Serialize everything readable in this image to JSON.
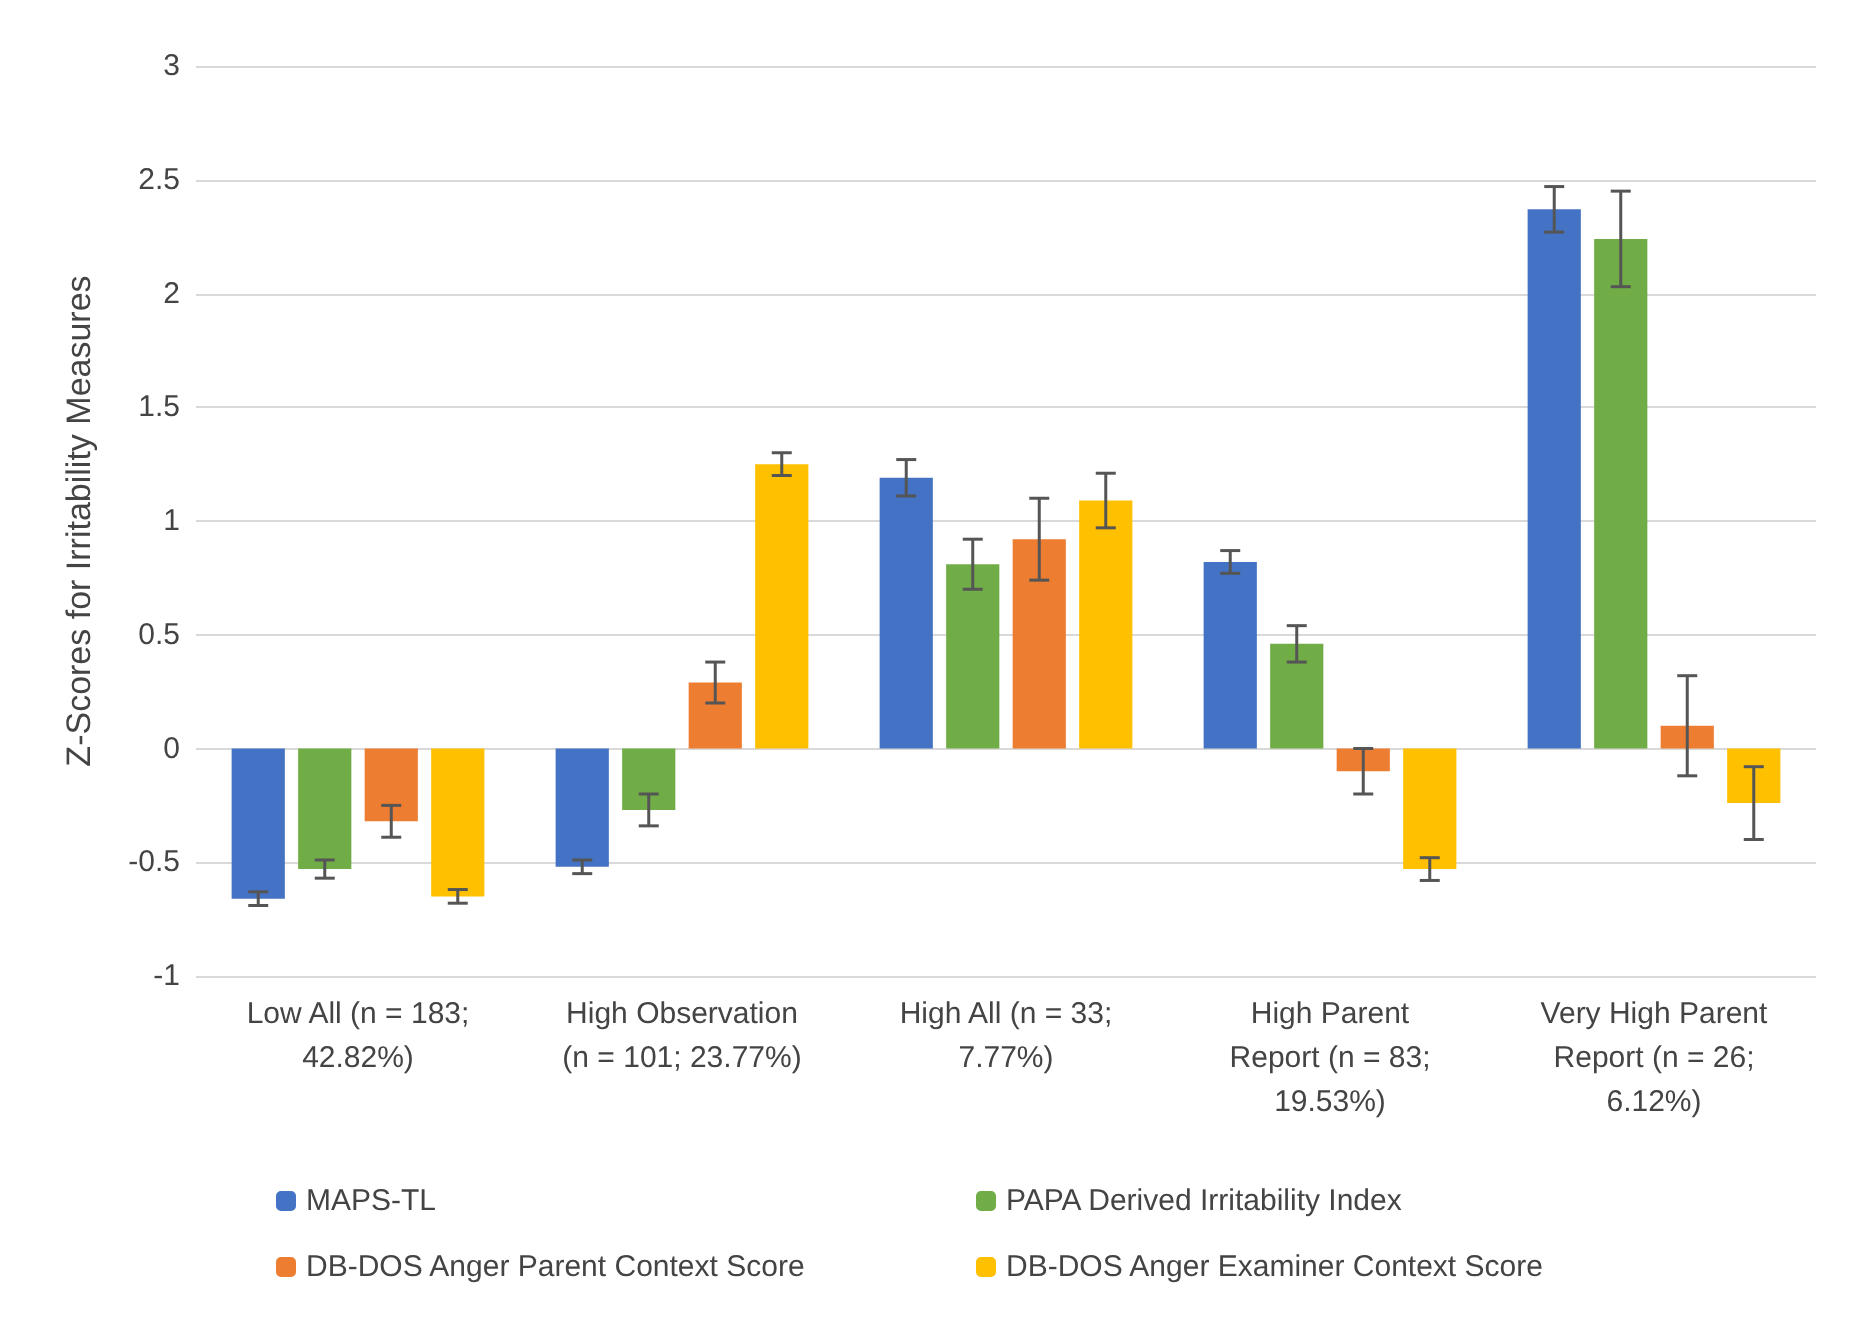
{
  "chart_data": {
    "type": "bar",
    "ylabel": "Z-Scores for Irritability Measures",
    "categories": [
      "Low All (n = 183;\n42.82%)",
      "High Observation\n(n = 101; 23.77%)",
      "High All (n = 33;\n7.77%)",
      "High Parent\nReport (n = 83;\n19.53%)",
      "Very High Parent\nReport (n = 26;\n6.12%)"
    ],
    "series": [
      {
        "name": "MAPS-TL",
        "color": "#4472c4",
        "values": [
          -0.66,
          -0.52,
          1.19,
          0.82,
          2.37
        ],
        "errors": [
          0.03,
          0.03,
          0.08,
          0.05,
          0.1
        ]
      },
      {
        "name": "PAPA Derived Irritability Index",
        "color": "#70ad47",
        "values": [
          -0.53,
          -0.27,
          0.81,
          0.46,
          2.24
        ],
        "errors": [
          0.04,
          0.07,
          0.11,
          0.08,
          0.21
        ]
      },
      {
        "name": "DB-DOS Anger Parent Context Score",
        "color": "#ed7d31",
        "values": [
          -0.32,
          0.29,
          0.92,
          -0.1,
          0.1
        ],
        "errors": [
          0.07,
          0.09,
          0.18,
          0.1,
          0.22
        ]
      },
      {
        "name": "DB-DOS Anger Examiner Context Score",
        "color": "#ffc000",
        "values": [
          -0.65,
          1.25,
          1.09,
          -0.53,
          -0.24
        ],
        "errors": [
          0.03,
          0.05,
          0.12,
          0.05,
          0.16
        ]
      }
    ],
    "ylim": [
      -1,
      3
    ],
    "yticks": [
      -1,
      -0.5,
      0,
      0.5,
      1,
      1.5,
      2,
      2.5,
      3
    ],
    "grid": "y",
    "legend": "bottom"
  }
}
